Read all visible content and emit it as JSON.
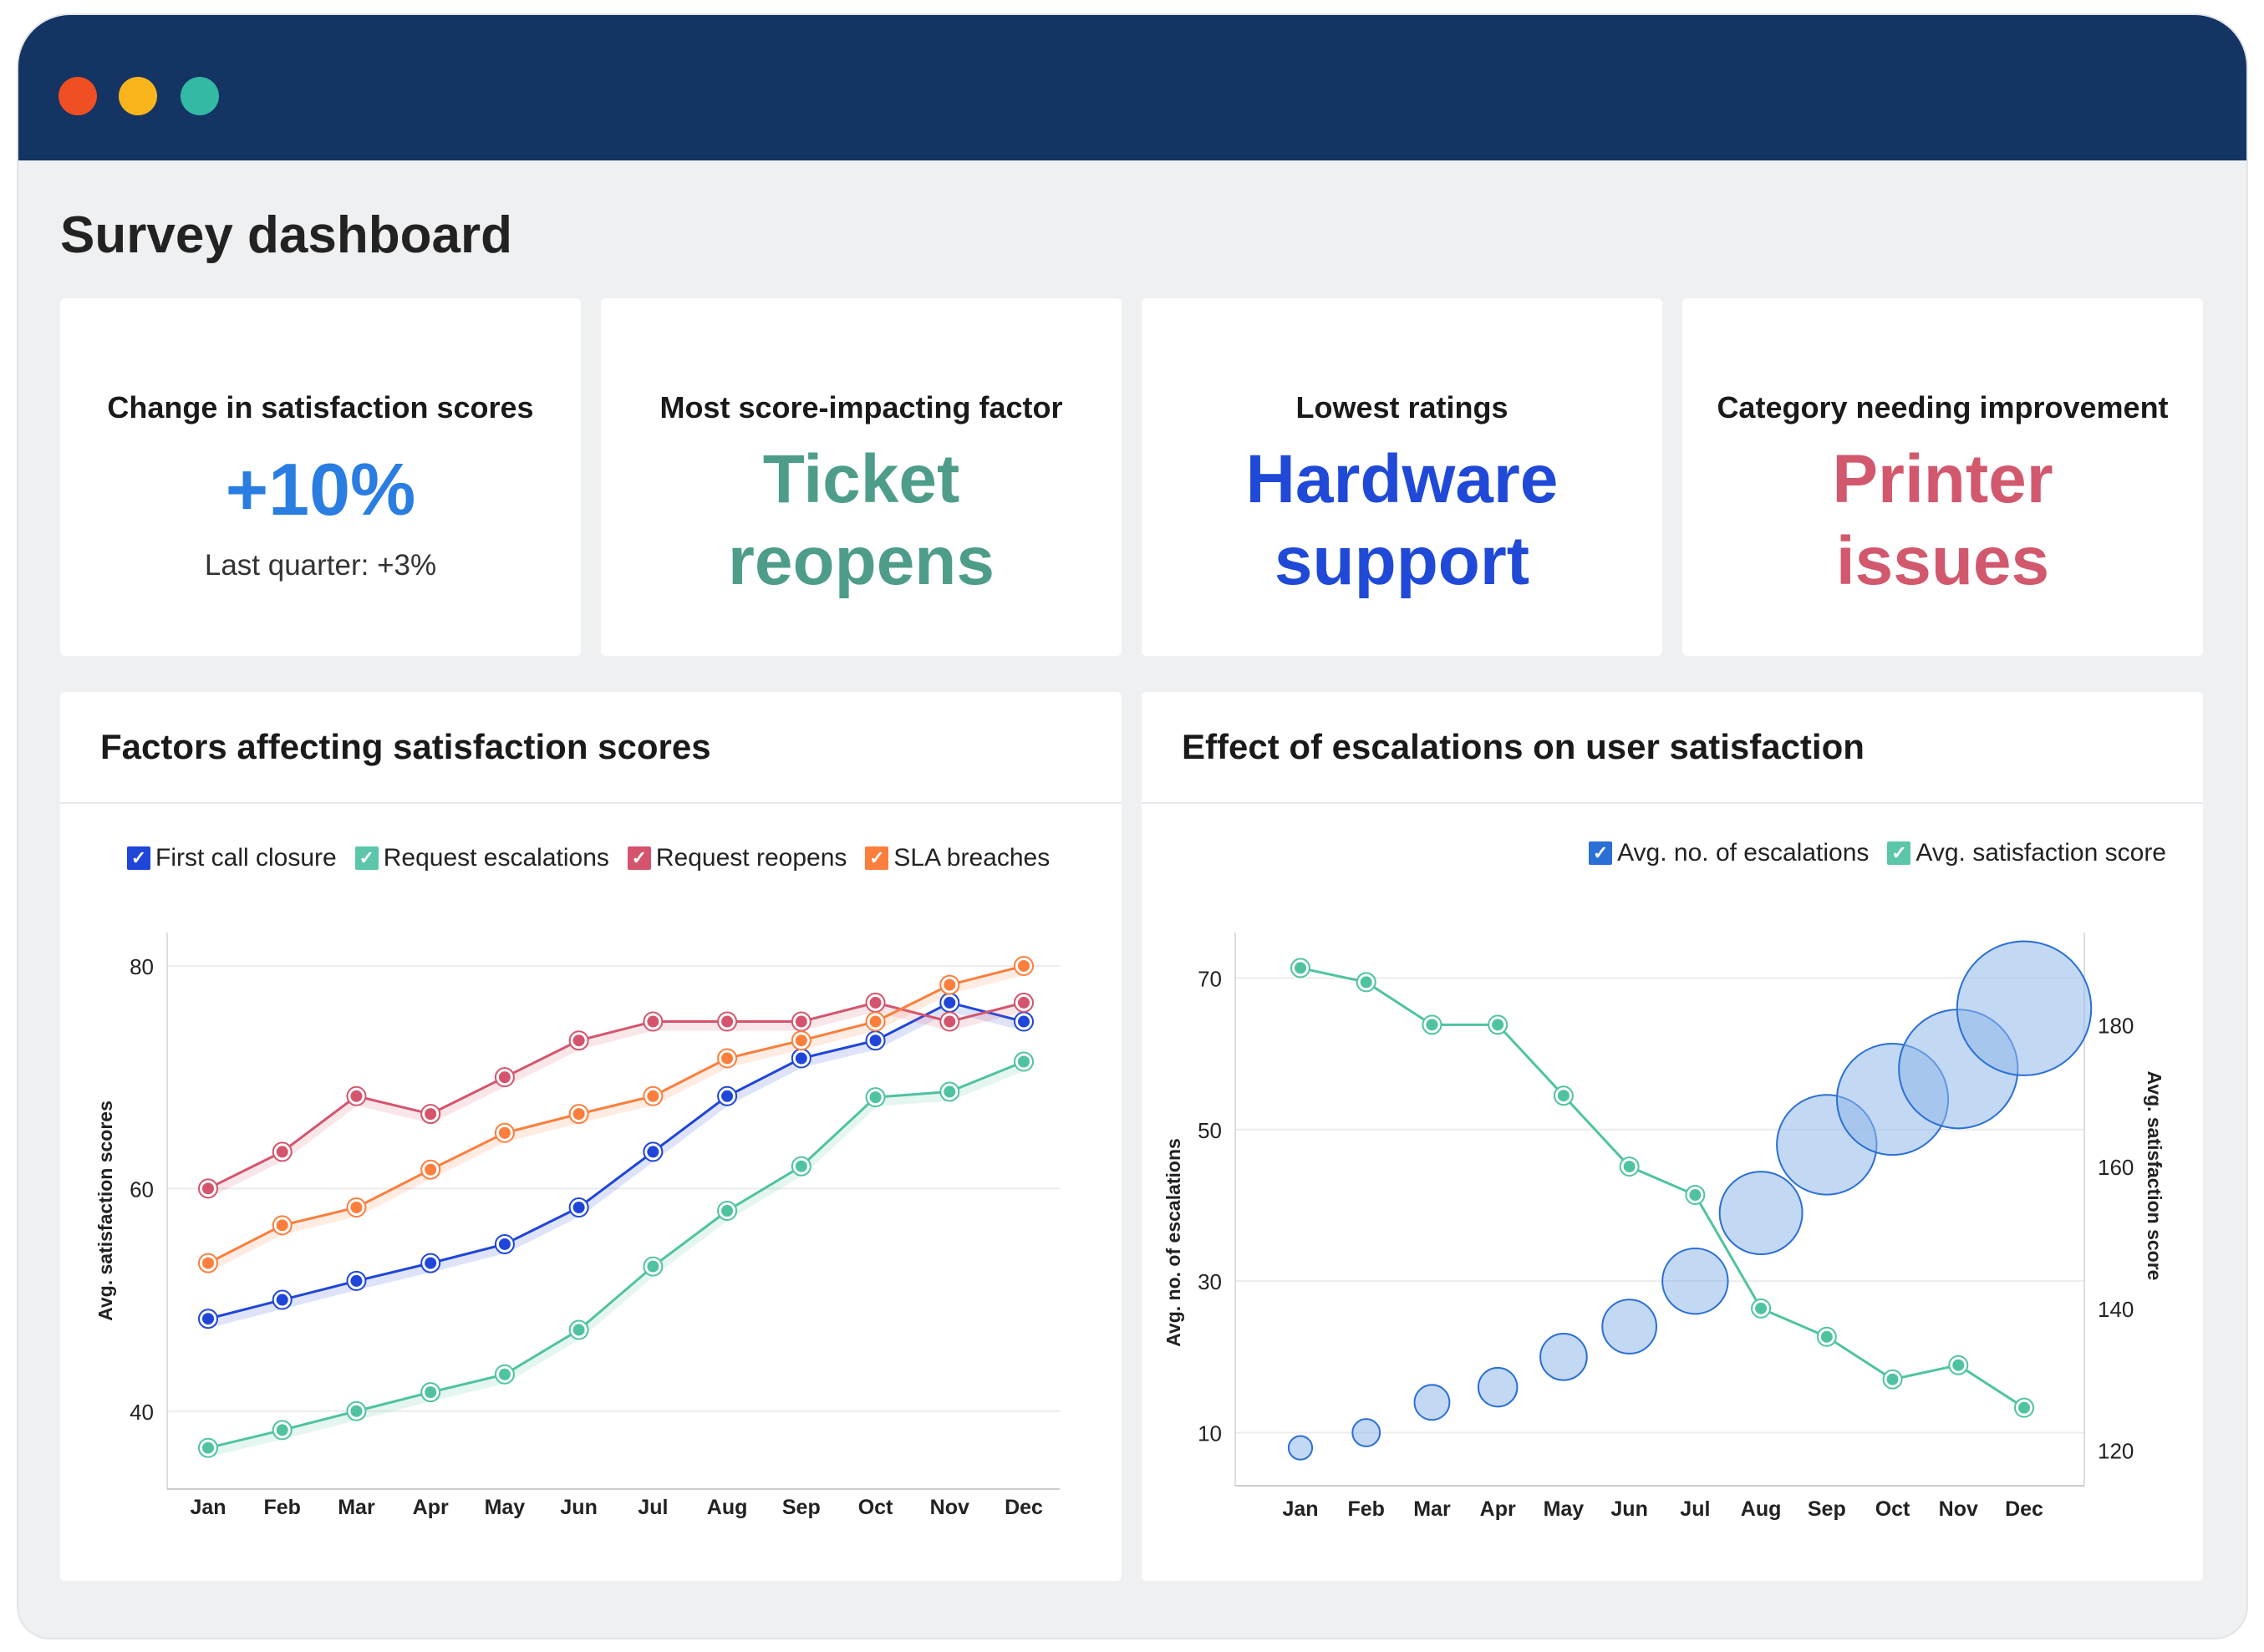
{
  "window": {
    "controls": [
      {
        "name": "close",
        "color": "#f04e23"
      },
      {
        "name": "minimize",
        "color": "#fbb51c"
      },
      {
        "name": "maximize",
        "color": "#33b9a4"
      }
    ]
  },
  "page_title": "Survey dashboard",
  "cards": [
    {
      "label": "Change in satisfaction scores",
      "value": "+10%",
      "sub": "Last quarter: +3%",
      "color": "#2a7de1"
    },
    {
      "label": "Most score-impacting factor",
      "value_line1": "Ticket",
      "value_line2": "reopens",
      "color": "#4e9d8a"
    },
    {
      "label": "Lowest ratings",
      "value_line1": "Hardware",
      "value_line2": "support",
      "color": "#1f49d6"
    },
    {
      "label": "Category needing improvement",
      "value_line1": "Printer",
      "value_line2": "issues",
      "color": "#d2586d"
    }
  ],
  "chart_data": [
    {
      "type": "line",
      "title": "Factors affecting satisfaction scores",
      "ylabel": "Avg. satisfaction scores",
      "categories": [
        "Jan",
        "Feb",
        "Mar",
        "Apr",
        "May",
        "Jun",
        "Jul",
        "Aug",
        "Sep",
        "Oct",
        "Nov",
        "Dec"
      ],
      "yticks": [
        40,
        60,
        80
      ],
      "ylim": [
        33,
        83
      ],
      "grid": true,
      "legend": "top",
      "series": [
        {
          "name": "First call closure",
          "color": "#1f45d9",
          "values": [
            48.3,
            50,
            51.7,
            53.3,
            55,
            58.3,
            63.3,
            68.3,
            71.7,
            73.3,
            76.7,
            75
          ]
        },
        {
          "name": "Request escalations",
          "color": "#4fc3a1",
          "values": [
            36.7,
            38.3,
            40,
            41.7,
            43.3,
            47.3,
            53,
            58,
            62,
            68.2,
            68.7,
            71.4
          ]
        },
        {
          "name": "Request reopens",
          "color": "#d4546d",
          "values": [
            60,
            63.3,
            68.3,
            66.7,
            70,
            73.3,
            75,
            75,
            75,
            76.7,
            75,
            76.7
          ]
        },
        {
          "name": "SLA breaches",
          "color": "#fb7e3c",
          "values": [
            53.3,
            56.7,
            58.3,
            61.7,
            65,
            66.7,
            68.3,
            71.7,
            73.3,
            75,
            78.3,
            80
          ]
        }
      ]
    },
    {
      "type": "bubble-line",
      "title": "Effect of escalations on user satisfaction",
      "ylabel_left": "Avg. no. of escalations",
      "ylabel_right": "Avg. satisfaction score",
      "categories": [
        "Jan",
        "Feb",
        "Mar",
        "Apr",
        "May",
        "Jun",
        "Jul",
        "Aug",
        "Sep",
        "Oct",
        "Nov",
        "Dec"
      ],
      "yticks_left": [
        10,
        30,
        50,
        70
      ],
      "yticks_right": [
        120,
        140,
        160,
        180
      ],
      "ylim_left": [
        3,
        76
      ],
      "ylim_right": [
        115,
        193
      ],
      "grid": true,
      "legend": "top-right",
      "series": [
        {
          "name": "Avg. no. of escalations",
          "type": "bubble",
          "axis": "left",
          "color": "#2a6fd6",
          "values": [
            8,
            10,
            14,
            16,
            20,
            24,
            30,
            39,
            48,
            54,
            58,
            66
          ]
        },
        {
          "name": "Avg. satisfaction score",
          "type": "line",
          "axis": "right",
          "color": "#4fc3a1",
          "values": [
            188,
            186,
            180,
            180,
            170,
            160,
            156,
            140,
            136,
            130,
            132,
            126
          ]
        }
      ]
    }
  ]
}
